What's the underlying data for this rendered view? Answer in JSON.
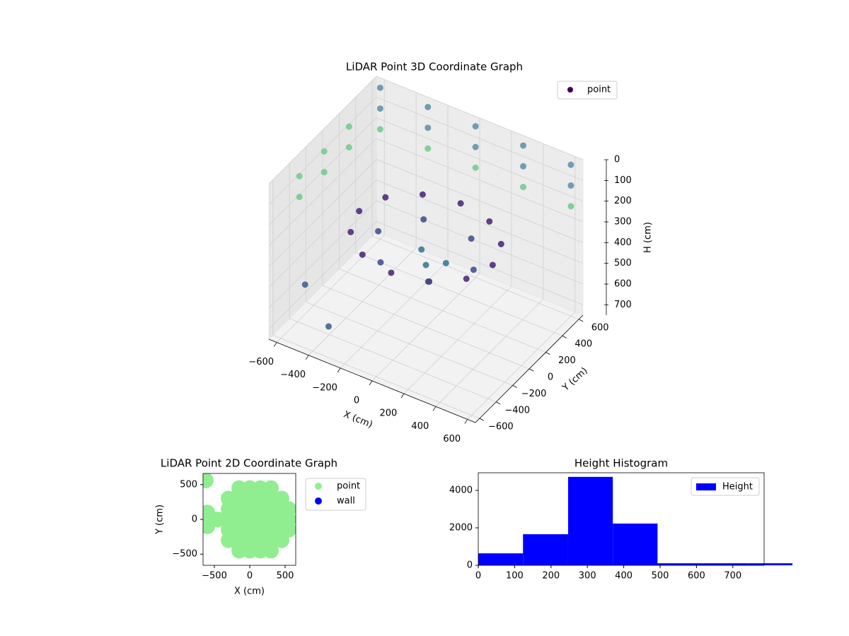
{
  "chart_data": [
    {
      "type": "scatter3d",
      "title": "LiDAR Point 3D Coordinate Graph",
      "xlabel": "X (cm)",
      "ylabel": "Y (cm)",
      "zlabel": "H (cm)",
      "xlim": [
        -650,
        650
      ],
      "ylim": [
        -650,
        650
      ],
      "zlim": [
        750,
        0
      ],
      "xticks": [
        {
          "value": -600,
          "label": "−600"
        },
        {
          "value": -400,
          "label": "−400"
        },
        {
          "value": -200,
          "label": "−200"
        },
        0,
        200,
        400,
        600
      ],
      "yticks": [
        {
          "value": -600,
          "label": "−600"
        },
        {
          "value": -400,
          "label": "−400"
        },
        {
          "value": -200,
          "label": "−200"
        },
        0,
        200,
        400,
        600
      ],
      "zticks": [
        0,
        100,
        200,
        300,
        400,
        500,
        600,
        700
      ],
      "legend": "upper right",
      "series": [
        {
          "name": "point",
          "color": "#440154",
          "x": [
            420,
            364,
            210,
            0,
            -210,
            -364,
            -420,
            -364,
            -210,
            0,
            210,
            364,
            300,
            150,
            -150,
            -300,
            -150,
            150,
            0,
            100,
            -80,
            -600,
            -600,
            -600,
            -300,
            -300,
            -300,
            0,
            0,
            0,
            300,
            300,
            300,
            600,
            600,
            600,
            -640,
            -640,
            -640,
            -640,
            -640,
            -640,
            -500,
            -300
          ],
          "y": [
            0,
            210,
            364,
            420,
            364,
            210,
            0,
            -210,
            -364,
            -420,
            -364,
            -210,
            0,
            260,
            260,
            0,
            -260,
            -260,
            0,
            50,
            100,
            600,
            600,
            600,
            600,
            600,
            600,
            600,
            600,
            600,
            600,
            600,
            600,
            600,
            600,
            600,
            -300,
            -300,
            0,
            0,
            300,
            300,
            -500,
            -600
          ],
          "z": [
            320,
            320,
            320,
            320,
            320,
            320,
            320,
            320,
            320,
            320,
            320,
            320,
            380,
            380,
            380,
            380,
            380,
            380,
            450,
            430,
            440,
            20,
            120,
            220,
            20,
            120,
            220,
            20,
            120,
            220,
            20,
            120,
            220,
            20,
            120,
            220,
            100,
            200,
            100,
            200,
            100,
            200,
            500,
            600
          ],
          "colors": [
            "#482173",
            "#482173",
            "#482173",
            "#482173",
            "#482173",
            "#482173",
            "#482173",
            "#482173",
            "#482173",
            "#482173",
            "#482173",
            "#482173",
            "#3e4a89",
            "#3e4a89",
            "#3e4a89",
            "#3e4a89",
            "#3e4a89",
            "#3e4a89",
            "#2a788e",
            "#2a788e",
            "#2a788e",
            "#5b8fa8",
            "#5b8fa8",
            "#6ccb8c",
            "#5b8fa8",
            "#5b8fa8",
            "#6ccb8c",
            "#5b8fa8",
            "#5b8fa8",
            "#6ccb8c",
            "#5b8fa8",
            "#5b8fa8",
            "#6ccb8c",
            "#5b8fa8",
            "#5b8fa8",
            "#6ccb8c",
            "#6ccb8c",
            "#6ccb8c",
            "#6ccb8c",
            "#6ccb8c",
            "#6ccb8c",
            "#6ccb8c",
            "#3b5a8a",
            "#3b5a8a"
          ]
        }
      ]
    },
    {
      "type": "scatter",
      "title": "LiDAR Point 2D Coordinate Graph",
      "xlabel": "X (cm)",
      "ylabel": "Y (cm)",
      "xlim": [
        -660,
        650
      ],
      "ylim": [
        -660,
        660
      ],
      "xticks": [
        {
          "value": -500,
          "label": "−500"
        },
        0,
        500
      ],
      "yticks": [
        {
          "value": -500,
          "label": "−500"
        },
        0,
        500
      ],
      "legend": "outside upper right",
      "series": [
        {
          "name": "point",
          "color": "#90ee90",
          "x": [
            -620,
            -600,
            -600,
            -600,
            -450,
            -300,
            -300,
            -300,
            -300,
            -300,
            -150,
            -150,
            -150,
            -150,
            -150,
            -150,
            -150,
            0,
            0,
            0,
            0,
            0,
            0,
            0,
            150,
            150,
            150,
            150,
            150,
            150,
            150,
            300,
            300,
            300,
            300,
            300,
            300,
            300,
            450,
            450,
            450,
            450,
            450,
            550,
            550,
            550
          ],
          "y": [
            560,
            -100,
            0,
            100,
            0,
            -300,
            -150,
            0,
            150,
            300,
            -450,
            -300,
            -150,
            0,
            150,
            300,
            450,
            -450,
            -300,
            -150,
            0,
            150,
            300,
            450,
            -450,
            -300,
            -150,
            0,
            150,
            300,
            450,
            -450,
            -300,
            -150,
            0,
            150,
            300,
            450,
            -300,
            -150,
            0,
            150,
            300,
            -150,
            0,
            150
          ]
        },
        {
          "name": "wall",
          "color": "#0000ff",
          "x": [],
          "y": []
        }
      ]
    },
    {
      "type": "histogram",
      "title": "Height Histogram",
      "bins": [
        0,
        123,
        247,
        370,
        493,
        617,
        740,
        864
      ],
      "values": [
        640,
        1660,
        4720,
        2230,
        110,
        110,
        110
      ],
      "series_name": "Height",
      "color": "#0000ff",
      "xlim": [
        0,
        786
      ],
      "ylim": [
        0,
        4940
      ],
      "xticks": [
        0,
        100,
        200,
        300,
        400,
        500,
        600,
        700
      ],
      "yticks": [
        0,
        2000,
        4000
      ],
      "legend": "upper right"
    }
  ]
}
